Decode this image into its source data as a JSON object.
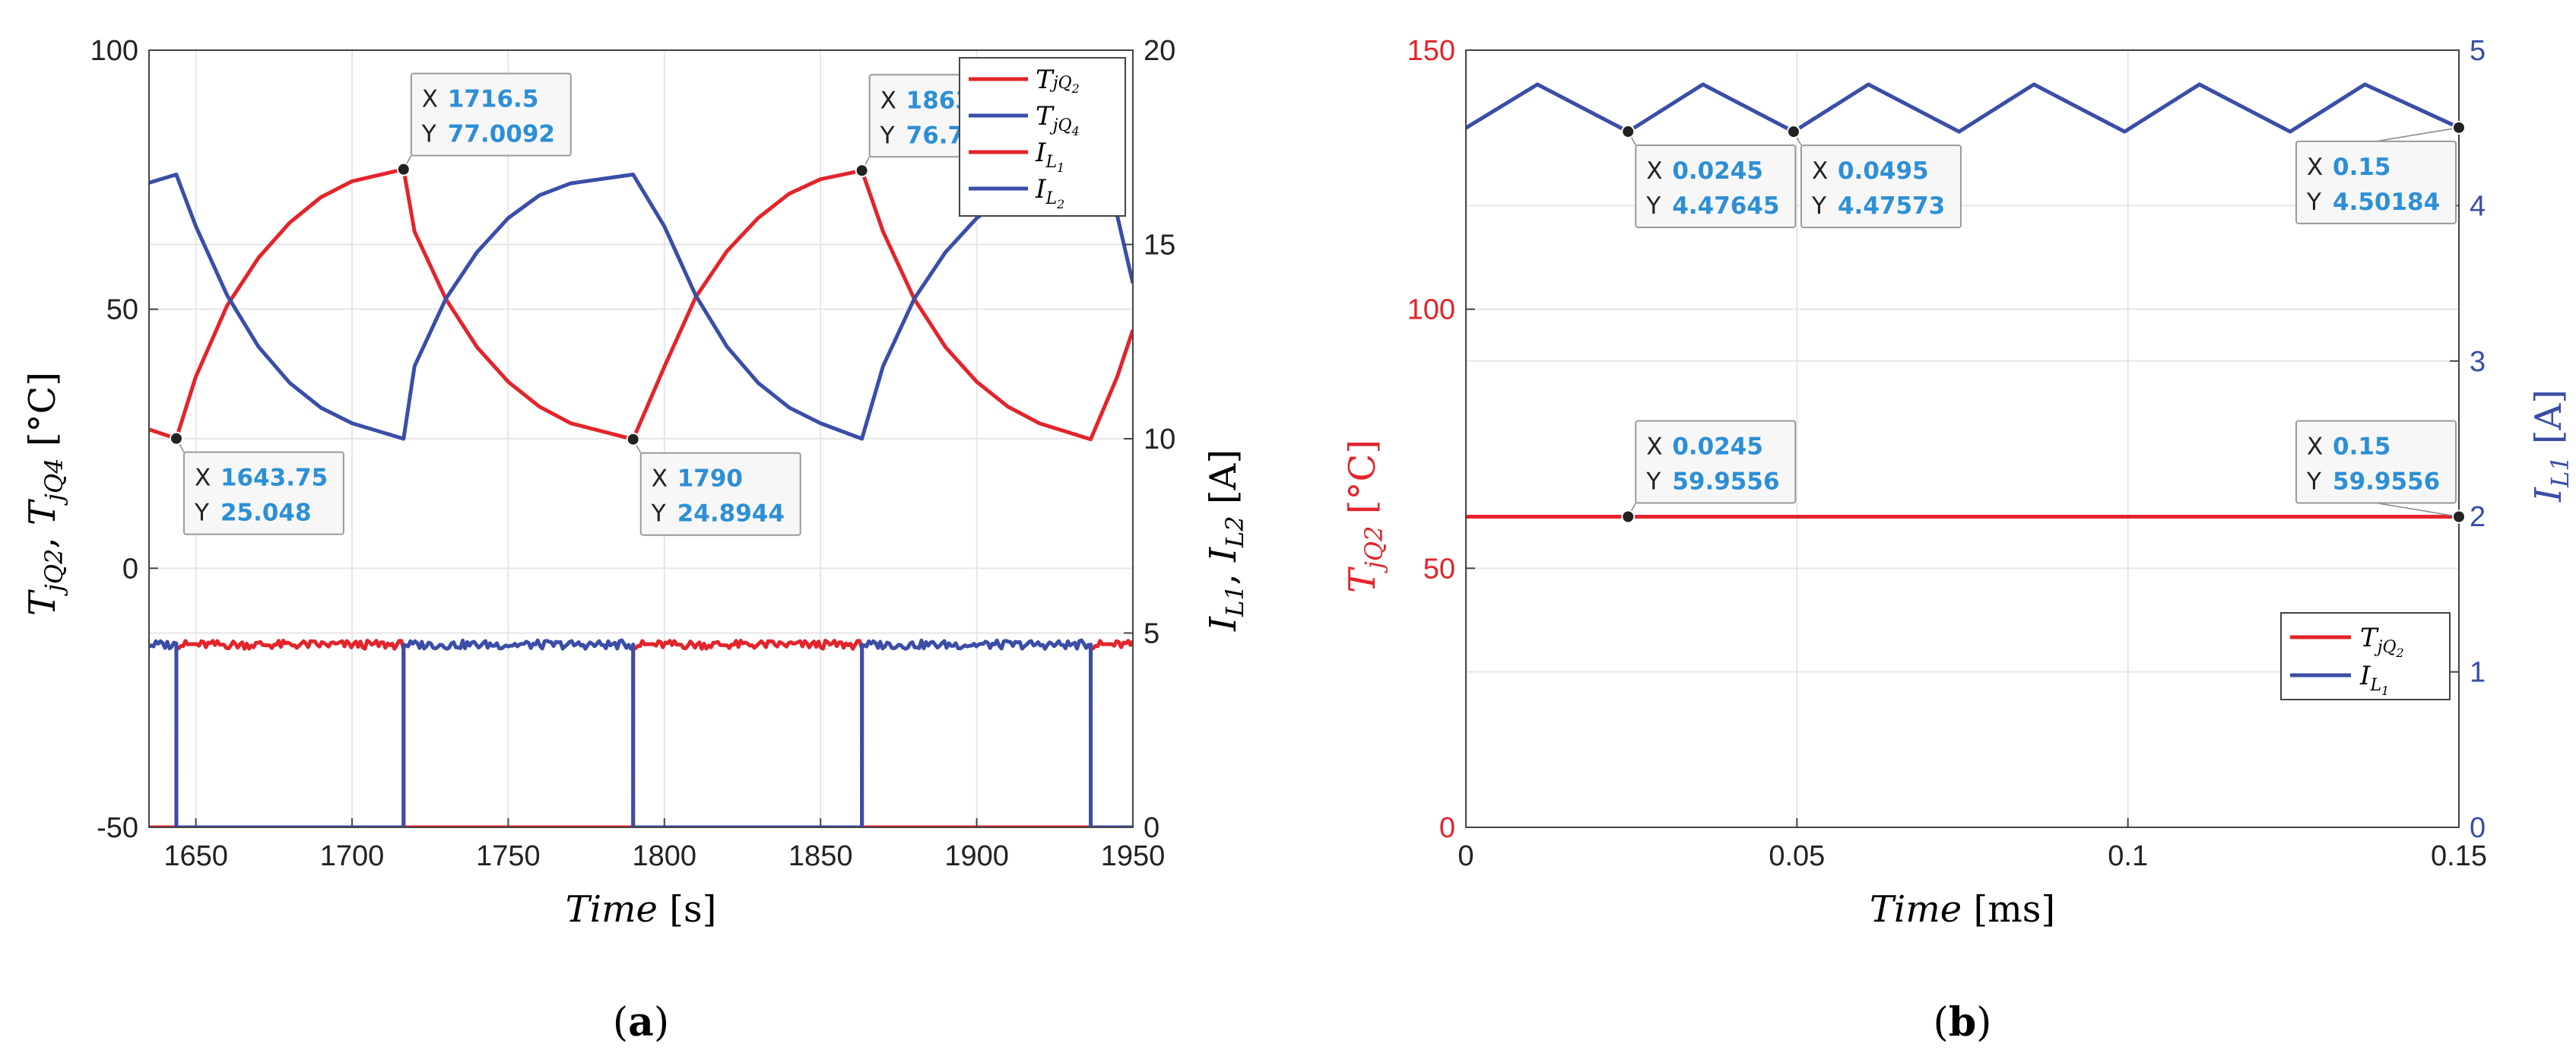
{
  "colors": {
    "red": "#e3242b",
    "blue": "#3a4ea8",
    "datatip_value": "#2d8fd5",
    "grid": "#e6e6e6"
  },
  "chart_data": [
    {
      "panel": "a",
      "type": "line",
      "caption": "(a)",
      "xlabel": {
        "text": "Time",
        "unit": "[s]"
      },
      "ylabel_left": "T_{jQ2}, T_{jQ4} [°C]",
      "ylabel_right": "I_{L1}, I_{L2} [A]",
      "xlim": [
        1635,
        1950
      ],
      "ylim_left": [
        -50,
        100
      ],
      "ylim_right": [
        0,
        20
      ],
      "x_ticks": [
        1650,
        1700,
        1750,
        1800,
        1850,
        1900,
        1950
      ],
      "y_ticks_left": [
        -50,
        0,
        50,
        100
      ],
      "y_ticks_right": [
        0,
        5,
        10,
        15,
        20
      ],
      "grid": true,
      "legend": {
        "position": "top-right",
        "entries": [
          {
            "label": "T_{jQ2}",
            "color": "red"
          },
          {
            "label": "T_{jQ4}",
            "color": "blue"
          },
          {
            "label": "I_{L1}",
            "color": "red"
          },
          {
            "label": "I_{L2}",
            "color": "blue"
          }
        ]
      },
      "series": [
        {
          "name": "T_{jQ2}",
          "axis": "left",
          "color": "red",
          "x": [
            1635,
            1643.75,
            1650,
            1660,
            1670,
            1680,
            1690,
            1700,
            1716.5,
            1720,
            1730,
            1740,
            1750,
            1760,
            1770,
            1790,
            1800,
            1810,
            1820,
            1830,
            1840,
            1850,
            1863.25,
            1870,
            1880,
            1890,
            1900,
            1910,
            1920,
            1936.5,
            1945,
            1950
          ],
          "y": [
            26.8,
            25.05,
            37,
            50.7,
            59.9,
            66.7,
            71.6,
            74.7,
            77.01,
            65,
            52,
            42.7,
            36,
            31.2,
            28,
            24.89,
            38.9,
            52.3,
            61.2,
            67.6,
            72.3,
            75.1,
            76.77,
            65,
            52,
            42.7,
            36,
            31.2,
            28,
            24.9,
            37,
            46
          ]
        },
        {
          "name": "T_{jQ4}",
          "axis": "left",
          "color": "blue",
          "x": [
            1635,
            1643.75,
            1650,
            1660,
            1670,
            1680,
            1690,
            1700,
            1716.5,
            1720,
            1730,
            1740,
            1750,
            1760,
            1770,
            1790,
            1800,
            1810,
            1820,
            1830,
            1840,
            1850,
            1863.25,
            1870,
            1880,
            1890,
            1900,
            1910,
            1920,
            1936.5,
            1945,
            1950
          ],
          "y": [
            74.4,
            76,
            66,
            52.7,
            42.8,
            35.8,
            31,
            28,
            25,
            39,
            52,
            61,
            67.6,
            72,
            74.3,
            76,
            66,
            52.7,
            42.8,
            35.8,
            31,
            28,
            25,
            39,
            52,
            61,
            67.6,
            72,
            74.3,
            75,
            68,
            55
          ]
        },
        {
          "name": "I_{L1}",
          "axis": "right",
          "color": "red",
          "x": [
            1635,
            1643.75,
            1643.76,
            1716.5,
            1716.51,
            1790,
            1790.01,
            1863.25,
            1863.26,
            1936.5,
            1936.51,
            1950
          ],
          "y": [
            0,
            0,
            4.7,
            4.7,
            0,
            0,
            4.7,
            4.7,
            0,
            0,
            4.7,
            4.7
          ]
        },
        {
          "name": "I_{L2}",
          "axis": "right",
          "color": "blue",
          "x": [
            1635,
            1643.75,
            1643.76,
            1716.5,
            1716.51,
            1790,
            1790.01,
            1863.25,
            1863.26,
            1936.5,
            1936.51,
            1950
          ],
          "y": [
            4.7,
            4.7,
            0,
            0,
            4.7,
            4.7,
            0,
            0,
            4.7,
            4.7,
            0,
            0
          ]
        }
      ],
      "datatips": [
        {
          "x": 1643.75,
          "y": 25.048,
          "x_text": "1643.75",
          "y_text": "25.048",
          "axis": "left"
        },
        {
          "x": 1716.5,
          "y": 77.0092,
          "x_text": "1716.5",
          "y_text": "77.0092",
          "axis": "left"
        },
        {
          "x": 1790,
          "y": 24.8944,
          "x_text": "1790",
          "y_text": "24.8944",
          "axis": "left"
        },
        {
          "x": 1863.25,
          "y": 76.7674,
          "x_text": "1863.25",
          "y_text": "76.7674",
          "axis": "left"
        }
      ]
    },
    {
      "panel": "b",
      "type": "line",
      "caption": "(b)",
      "xlabel": {
        "text": "Time",
        "unit": "[ms]"
      },
      "ylabel_left": "T_{jQ2} [°C]",
      "ylabel_right": "I_{L1} [A]",
      "xlim": [
        0,
        0.15
      ],
      "ylim_left": [
        0,
        150
      ],
      "ylim_right": [
        0,
        5
      ],
      "x_ticks": [
        0,
        0.05,
        0.1,
        0.15
      ],
      "y_ticks_left": [
        0,
        50,
        100,
        150
      ],
      "y_ticks_right": [
        0,
        1,
        2,
        3,
        4,
        5
      ],
      "grid": true,
      "legend": {
        "position": "lower-right",
        "entries": [
          {
            "label": "T_{jQ2}",
            "color": "red"
          },
          {
            "label": "I_{L1}",
            "color": "blue"
          }
        ]
      },
      "series": [
        {
          "name": "T_{jQ2}",
          "axis": "left",
          "color": "red",
          "x": [
            0,
            0.15
          ],
          "y": [
            59.9556,
            59.9556
          ]
        },
        {
          "name": "I_{L1}",
          "axis": "right",
          "color": "blue",
          "x": [
            0,
            0.0108,
            0.0245,
            0.0358,
            0.0495,
            0.0608,
            0.0745,
            0.0858,
            0.0995,
            0.1108,
            0.1245,
            0.1358,
            0.15
          ],
          "y": [
            4.5,
            4.78,
            4.476,
            4.78,
            4.476,
            4.78,
            4.476,
            4.78,
            4.476,
            4.78,
            4.476,
            4.78,
            4.502
          ]
        }
      ],
      "datatips": [
        {
          "x": 0.0245,
          "y": 4.47645,
          "x_text": "0.0245",
          "y_text": "4.47645",
          "axis": "right"
        },
        {
          "x": 0.0495,
          "y": 4.47573,
          "x_text": "0.0495",
          "y_text": "4.47573",
          "axis": "right"
        },
        {
          "x": 0.15,
          "y": 4.50184,
          "x_text": "0.15",
          "y_text": "4.50184",
          "axis": "right"
        },
        {
          "x": 0.0245,
          "y": 59.9556,
          "x_text": "0.0245",
          "y_text": "59.9556",
          "axis": "left"
        },
        {
          "x": 0.15,
          "y": 59.9556,
          "x_text": "0.15",
          "y_text": "59.9556",
          "axis": "left"
        }
      ]
    }
  ]
}
